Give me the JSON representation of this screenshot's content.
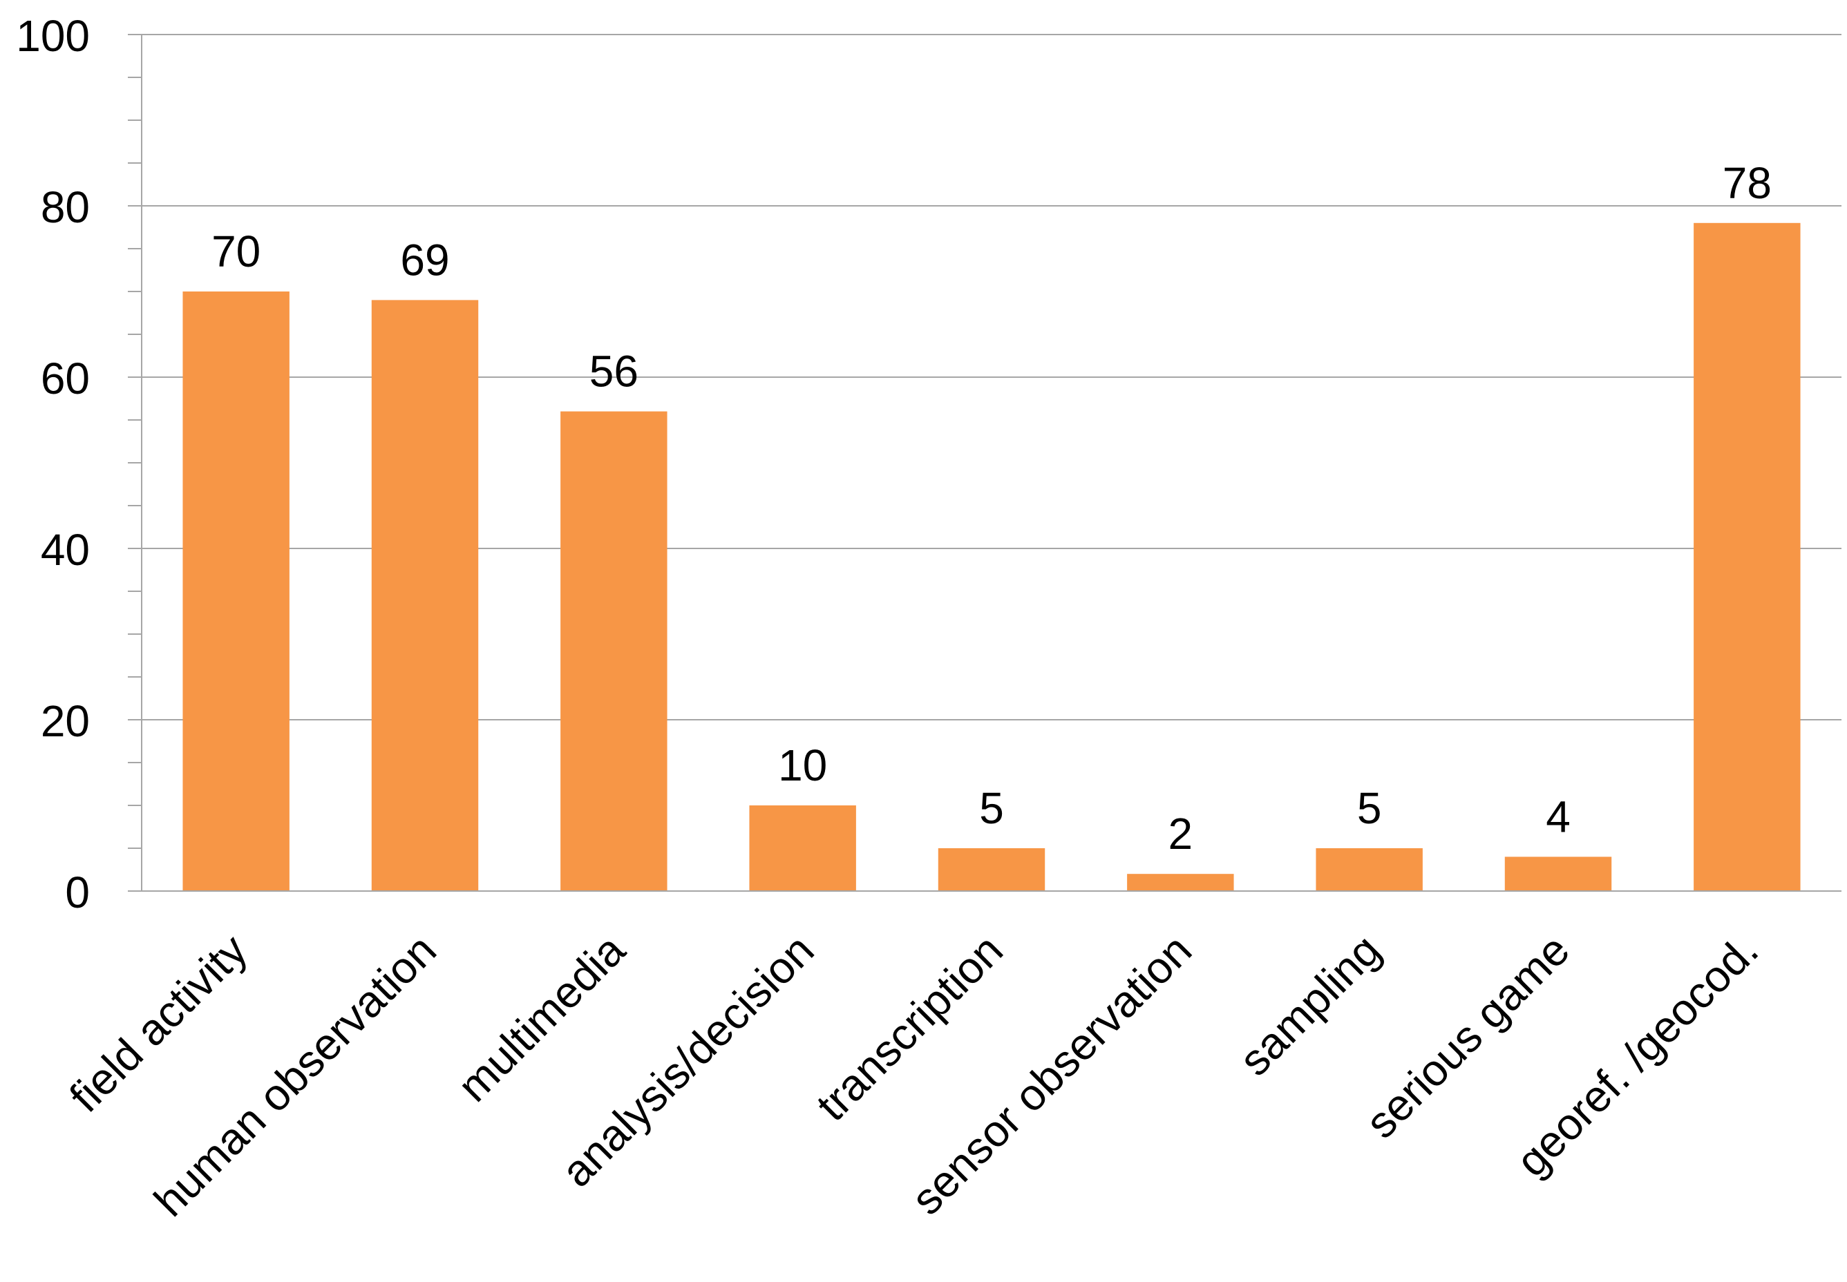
{
  "chart_data": {
    "type": "bar",
    "categories": [
      "field activity",
      "human observation",
      "multimedia",
      "analysis/decision",
      "transcription",
      "sensor observation",
      "sampling",
      "serious game",
      "georef. /geocod."
    ],
    "values": [
      70,
      69,
      56,
      10,
      5,
      2,
      5,
      4,
      78
    ],
    "data_labels": [
      "70",
      "69",
      "56",
      "10",
      "5",
      "2",
      "5",
      "4",
      "78"
    ],
    "ylim": [
      0,
      100
    ],
    "y_ticks": [
      0,
      20,
      40,
      60,
      80,
      100
    ],
    "y_tick_labels": [
      "0",
      "20",
      "40",
      "60",
      "80",
      "100"
    ],
    "y_minor_step": 5,
    "grid": true,
    "legend": "none",
    "bar_color": "#F79646",
    "gridline_color": "#A6A6A6"
  }
}
